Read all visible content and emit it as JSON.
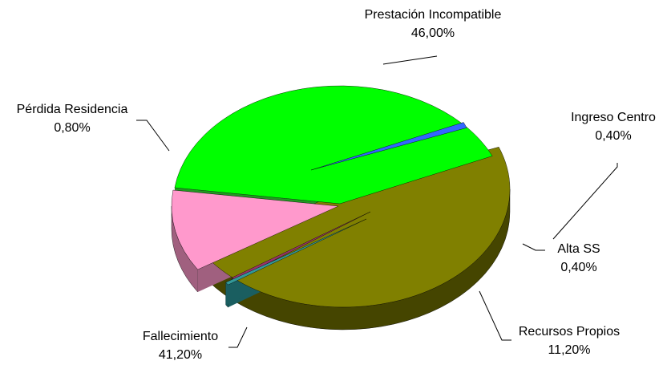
{
  "chart_data": {
    "type": "pie",
    "style": "3d-exploded",
    "title": "",
    "slices": [
      {
        "label": "Prestación Incompatible",
        "value": 46.0,
        "display": "46,00%",
        "color": "#808000",
        "side": "#454500"
      },
      {
        "label": "Ingreso Centro",
        "value": 0.4,
        "display": "0,40%",
        "color": "#993366",
        "side": "#4d1a33"
      },
      {
        "label": "Alta SS",
        "value": 0.4,
        "display": "0,40%",
        "color": "#339999",
        "side": "#1a5e60"
      },
      {
        "label": "Recursos Propios",
        "value": 11.2,
        "display": "11,20%",
        "color": "#ff99cc",
        "side": "#a0607f"
      },
      {
        "label": "Fallecimiento",
        "value": 41.2,
        "display": "41,20%",
        "color": "#00ff00",
        "side": "#229922"
      },
      {
        "label": "Pérdida Residencia",
        "value": 0.8,
        "display": "0,80%",
        "color": "#3366ff",
        "side": "#1a3399"
      }
    ]
  }
}
